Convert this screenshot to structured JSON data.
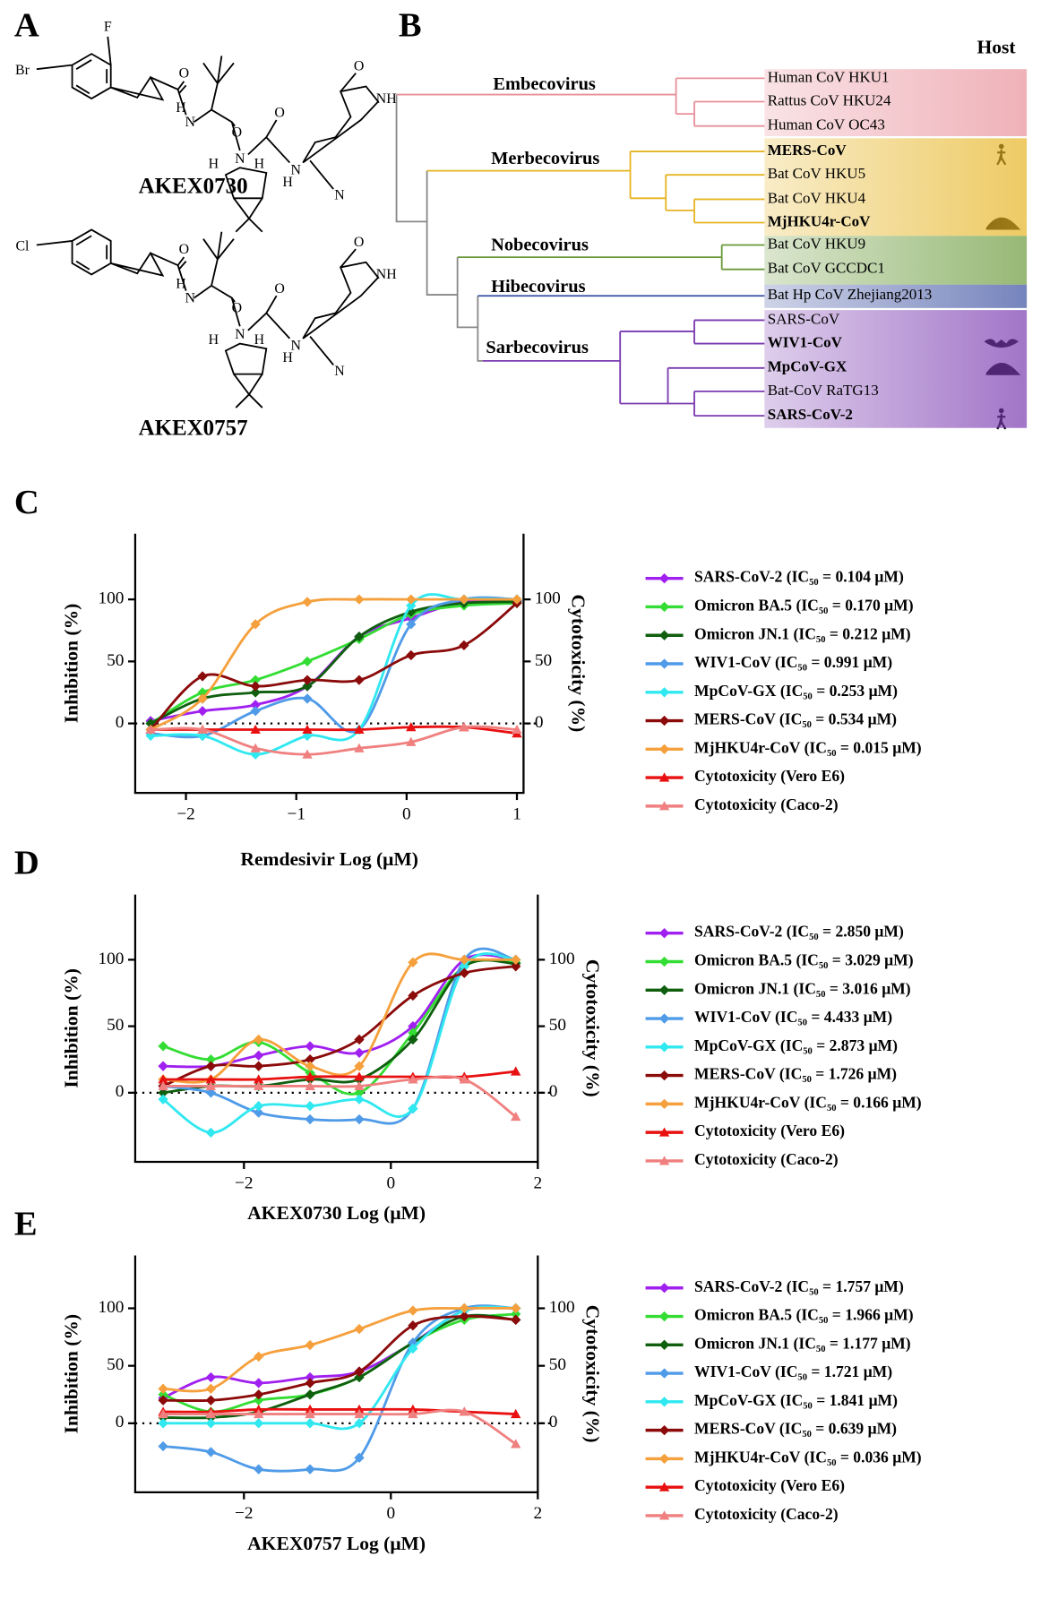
{
  "panel_a": {
    "label": "A",
    "structures": [
      {
        "name": "AKEX0730",
        "atoms": [
          "Br",
          "F",
          "O",
          "H",
          "N",
          "O",
          "N",
          "H",
          "H",
          "O",
          "H",
          "N",
          "N",
          "O",
          "NH"
        ]
      },
      {
        "name": "AKEX0757",
        "atoms": [
          "Cl",
          "O",
          "H",
          "N",
          "O",
          "N",
          "H",
          "H",
          "O",
          "H",
          "N",
          "N",
          "O",
          "NH"
        ]
      }
    ]
  },
  "panel_b": {
    "label": "B",
    "host_header": "Host",
    "genera": [
      {
        "name": "Embecovirus",
        "color": "#e8909a"
      },
      {
        "name": "Merbecovirus",
        "color": "#e6b422"
      },
      {
        "name": "Nobecovirus",
        "color": "#6a9a3a"
      },
      {
        "name": "Hibecovirus",
        "color": "#3a4fa0"
      },
      {
        "name": "Sarbecovirus",
        "color": "#7a3ab0"
      }
    ],
    "leaves": [
      {
        "name": "Human CoV HKU1",
        "color": "#000000",
        "bold": false
      },
      {
        "name": "Rattus CoV HKU24",
        "color": "#000000",
        "bold": false
      },
      {
        "name": "Human CoV OC43",
        "color": "#000000",
        "bold": false
      },
      {
        "name": "MERS-CoV",
        "color": "#8b0a0a",
        "bold": true
      },
      {
        "name": "Bat CoV HKU5",
        "color": "#000000",
        "bold": false
      },
      {
        "name": "Bat CoV HKU4",
        "color": "#000000",
        "bold": false
      },
      {
        "name": "MjHKU4r-CoV",
        "color": "#f5a03c",
        "bold": true
      },
      {
        "name": "Bat CoV HKU9",
        "color": "#000000",
        "bold": false
      },
      {
        "name": "Bat CoV GCCDC1",
        "color": "#000000",
        "bold": false
      },
      {
        "name": "Bat Hp CoV Zhejiang2013",
        "color": "#000000",
        "bold": false
      },
      {
        "name": "SARS-CoV",
        "color": "#000000",
        "bold": false
      },
      {
        "name": "WIV1-CoV",
        "color": "#2f6fe0",
        "bold": true
      },
      {
        "name": "MpCoV-GX",
        "color": "#30e8f0",
        "bold": true
      },
      {
        "name": "Bat-CoV RaTG13",
        "color": "#000000",
        "bold": false
      },
      {
        "name": "SARS-CoV-2",
        "color": "#a020f0",
        "bold": true
      }
    ]
  },
  "chart_data": [
    {
      "type": "dose_response",
      "panel": "C",
      "xlabel": "Remdesivir Log (μM)",
      "ylabel": "Inhibition (%)",
      "y2label": "Cytotoxicity (%)",
      "xlim": [
        -2.46,
        1.06
      ],
      "ylim": [
        -56,
        153
      ],
      "y2lim": [
        -56,
        153
      ],
      "xticks": [
        {
          "value": -2,
          "label": "−2"
        },
        {
          "value": -1,
          "label": "−1"
        },
        0,
        1
      ],
      "yticks": [
        0,
        50,
        100
      ],
      "y2ticks": [
        0,
        50,
        100
      ],
      "zero_line": true,
      "x": [
        -2.32,
        -1.85,
        -1.37,
        -0.9,
        -0.43,
        0.04,
        0.52,
        1.0
      ],
      "series": [
        {
          "name": "SARS-CoV-2 (IC₅₀ = 0.104 μM)",
          "color": "#a020f0",
          "marker": "diamond",
          "values": [
            2,
            10,
            15,
            30,
            70,
            85,
            98,
            99
          ]
        },
        {
          "name": "Omicron BA.5 (IC₅₀ = 0.170 μM)",
          "color": "#33dd33",
          "marker": "diamond",
          "values": [
            0,
            25,
            35,
            50,
            68,
            88,
            95,
            97
          ]
        },
        {
          "name": "Omicron JN.1 (IC₅₀ = 0.212 μM)",
          "color": "#0f5f0f",
          "marker": "diamond",
          "values": [
            0,
            20,
            25,
            30,
            70,
            90,
            97,
            98
          ]
        },
        {
          "name": "WIV1-CoV (IC₅₀ = 0.991 μM)",
          "color": "#4f9be8",
          "marker": "diamond",
          "values": [
            -8,
            -10,
            10,
            20,
            -5,
            80,
            100,
            100
          ]
        },
        {
          "name": "MpCoV-GX (IC₅₀ = 0.253 μM)",
          "color": "#30e8f0",
          "marker": "diamond",
          "values": [
            -10,
            -10,
            -25,
            -10,
            -5,
            95,
            100,
            100
          ]
        },
        {
          "name": "MERS-CoV (IC₅₀ = 0.534 μM)",
          "color": "#8b0a0a",
          "marker": "diamond",
          "values": [
            -5,
            38,
            30,
            35,
            35,
            55,
            63,
            97
          ]
        },
        {
          "name": "MjHKU4r-CoV (IC₅₀ = 0.015 μM)",
          "color": "#f5a03c",
          "marker": "diamond",
          "values": [
            -5,
            20,
            80,
            98,
            100,
            100,
            100,
            100
          ]
        },
        {
          "name": "Cytotoxicity (Vero E6)",
          "color": "#e81010",
          "marker": "triangle",
          "axis": "y2",
          "values": [
            -5,
            -5,
            -5,
            -5,
            -5,
            -3,
            -3,
            -8
          ]
        },
        {
          "name": "Cytotoxicity (Caco-2)",
          "color": "#f08080",
          "marker": "triangle",
          "axis": "y2",
          "values": [
            -5,
            -5,
            -20,
            -25,
            -20,
            -15,
            -3,
            -5
          ]
        }
      ]
    },
    {
      "type": "dose_response",
      "panel": "D",
      "xlabel": "AKEX0730 Log (μM)",
      "ylabel": "Inhibition (%)",
      "y2label": "Cytotoxicity (%)",
      "xlim": [
        -3.48,
        2
      ],
      "ylim": [
        -52,
        149
      ],
      "y2lim": [
        -52,
        149
      ],
      "xticks": [
        {
          "value": -2,
          "label": "−2"
        },
        0,
        2
      ],
      "yticks": [
        0,
        50,
        100
      ],
      "y2ticks": [
        0,
        50,
        100
      ],
      "zero_line": true,
      "x": [
        -3.1,
        -2.45,
        -1.8,
        -1.1,
        -0.43,
        0.3,
        1.0,
        1.7
      ],
      "series": [
        {
          "name": "SARS-CoV-2 (IC₅₀ = 2.850 μM)",
          "color": "#a020f0",
          "marker": "diamond",
          "values": [
            20,
            20,
            28,
            35,
            30,
            50,
            100,
            100
          ]
        },
        {
          "name": "Omicron BA.5 (IC₅₀ = 3.029 μM)",
          "color": "#33dd33",
          "marker": "diamond",
          "values": [
            35,
            25,
            38,
            15,
            0,
            45,
            95,
            98
          ]
        },
        {
          "name": "Omicron JN.1 (IC₅₀ = 3.016 μM)",
          "color": "#0f5f0f",
          "marker": "diamond",
          "values": [
            0,
            5,
            5,
            10,
            10,
            40,
            95,
            97
          ]
        },
        {
          "name": "WIV1-CoV (IC₅₀ = 4.433 μM)",
          "color": "#4f9be8",
          "marker": "diamond",
          "values": [
            5,
            0,
            -15,
            -20,
            -20,
            -12,
            100,
            100
          ]
        },
        {
          "name": "MpCoV-GX (IC₅₀ = 2.873 μM)",
          "color": "#30e8f0",
          "marker": "diamond",
          "values": [
            -5,
            -30,
            -10,
            -10,
            -5,
            -12,
            95,
            100
          ]
        },
        {
          "name": "MERS-CoV (IC₅₀ = 1.726 μM)",
          "color": "#8b0a0a",
          "marker": "diamond",
          "values": [
            5,
            20,
            20,
            25,
            40,
            73,
            90,
            95
          ]
        },
        {
          "name": "MjHKU4r-CoV (IC₅₀ = 0.166 μM)",
          "color": "#f5a03c",
          "marker": "diamond",
          "values": [
            10,
            10,
            40,
            20,
            20,
            98,
            100,
            100
          ]
        },
        {
          "name": "Cytotoxicity (Vero E6)",
          "color": "#e81010",
          "marker": "triangle",
          "axis": "y2",
          "values": [
            10,
            10,
            10,
            12,
            12,
            12,
            12,
            16
          ]
        },
        {
          "name": "Cytotoxicity (Caco-2)",
          "color": "#f08080",
          "marker": "triangle",
          "axis": "y2",
          "values": [
            5,
            5,
            5,
            5,
            5,
            10,
            10,
            -18
          ]
        }
      ]
    },
    {
      "type": "dose_response",
      "panel": "E",
      "xlabel": "AKEX0757 Log (μM)",
      "ylabel": "Inhibition (%)",
      "y2label": "Cytotoxicity (%)",
      "xlim": [
        -3.48,
        2
      ],
      "ylim": [
        -60,
        146
      ],
      "y2lim": [
        -60,
        146
      ],
      "xticks": [
        {
          "value": -2,
          "label": "−2"
        },
        0,
        2
      ],
      "yticks": [
        0,
        50,
        100
      ],
      "y2ticks": [
        0,
        50,
        100
      ],
      "zero_line": true,
      "x": [
        -3.1,
        -2.45,
        -1.8,
        -1.1,
        -0.43,
        0.3,
        1.0,
        1.7
      ],
      "series": [
        {
          "name": "SARS-CoV-2 (IC₅₀ = 1.757 μM)",
          "color": "#a020f0",
          "marker": "diamond",
          "values": [
            22,
            40,
            35,
            40,
            45,
            70,
            98,
            100
          ]
        },
        {
          "name": "Omicron BA.5 (IC₅₀ = 1.966 μM)",
          "color": "#33dd33",
          "marker": "diamond",
          "values": [
            25,
            10,
            20,
            25,
            40,
            70,
            90,
            95
          ]
        },
        {
          "name": "Omicron JN.1 (IC₅₀ = 1.177 μM)",
          "color": "#0f5f0f",
          "marker": "diamond",
          "values": [
            5,
            5,
            10,
            25,
            40,
            70,
            93,
            90
          ]
        },
        {
          "name": "WIV1-CoV (IC₅₀ = 1.721 μM)",
          "color": "#4f9be8",
          "marker": "diamond",
          "values": [
            -20,
            -25,
            -40,
            -40,
            -30,
            70,
            100,
            100
          ]
        },
        {
          "name": "MpCoV-GX (IC₅₀ = 1.841 μM)",
          "color": "#30e8f0",
          "marker": "diamond",
          "values": [
            0,
            0,
            0,
            0,
            0,
            65,
            98,
            100
          ]
        },
        {
          "name": "MERS-CoV (IC₅₀ = 0.639 μM)",
          "color": "#8b0a0a",
          "marker": "diamond",
          "values": [
            20,
            20,
            25,
            35,
            45,
            85,
            93,
            90
          ]
        },
        {
          "name": "MjHKU4r-CoV (IC₅₀ = 0.036 μM)",
          "color": "#f5a03c",
          "marker": "diamond",
          "values": [
            30,
            30,
            58,
            68,
            82,
            98,
            100,
            100
          ]
        },
        {
          "name": "Cytotoxicity (Vero E6)",
          "color": "#e81010",
          "marker": "triangle",
          "axis": "y2",
          "values": [
            10,
            10,
            12,
            12,
            12,
            12,
            10,
            8
          ]
        },
        {
          "name": "Cytotoxicity (Caco-2)",
          "color": "#f08080",
          "marker": "triangle",
          "axis": "y2",
          "values": [
            8,
            8,
            8,
            8,
            8,
            8,
            10,
            -18
          ]
        }
      ]
    }
  ]
}
